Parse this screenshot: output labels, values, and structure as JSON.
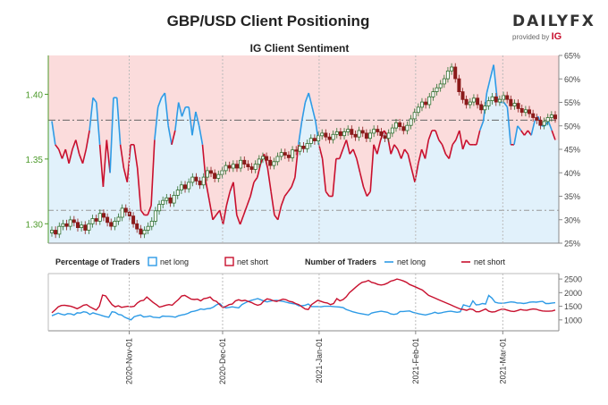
{
  "title": "GBP/USD Client Positioning",
  "brand": {
    "name": "DAILYFX",
    "provided_by": "provided by",
    "provider": "IG"
  },
  "colors": {
    "long": "#2e9be6",
    "short": "#c8102e",
    "bull_candle": "#2f6f2f",
    "bear_candle": "#8b1a1a",
    "panel_border": "#4c9a2a"
  },
  "chart_data": [
    {
      "type": "candlestick",
      "title": "IG Client Sentiment",
      "instrument": "GBP/USD",
      "y_left_ticks": [
        "1.30",
        "1.35",
        "1.40"
      ],
      "y_left_range": [
        1.285,
        1.43
      ],
      "y_right_ticks": [
        "25%",
        "30%",
        "35%",
        "40%",
        "45%",
        "50%",
        "55%",
        "60%",
        "65%"
      ],
      "y_right_range": [
        25,
        65
      ],
      "reference_lines": {
        "price": 1.38,
        "percent": 32
      },
      "date_range": [
        "2020-10-06",
        "2021-03-19"
      ],
      "close": [
        1.295,
        1.292,
        1.298,
        1.3,
        1.298,
        1.303,
        1.301,
        1.297,
        1.299,
        1.295,
        1.3,
        1.304,
        1.302,
        1.308,
        1.305,
        1.301,
        1.298,
        1.302,
        1.305,
        1.312,
        1.309,
        1.306,
        1.3,
        1.296,
        1.292,
        1.295,
        1.298,
        1.302,
        1.31,
        1.315,
        1.318,
        1.32,
        1.316,
        1.322,
        1.326,
        1.33,
        1.327,
        1.332,
        1.336,
        1.333,
        1.33,
        1.336,
        1.341,
        1.339,
        1.335,
        1.338,
        1.341,
        1.345,
        1.343,
        1.346,
        1.343,
        1.349,
        1.346,
        1.344,
        1.342,
        1.346,
        1.35,
        1.352,
        1.349,
        1.345,
        1.348,
        1.352,
        1.355,
        1.353,
        1.351,
        1.357,
        1.356,
        1.36,
        1.358,
        1.362,
        1.366,
        1.364,
        1.368,
        1.37,
        1.367,
        1.365,
        1.369,
        1.371,
        1.368,
        1.371,
        1.373,
        1.369,
        1.367,
        1.372,
        1.37,
        1.366,
        1.37,
        1.373,
        1.371,
        1.368,
        1.366,
        1.37,
        1.374,
        1.378,
        1.375,
        1.372,
        1.376,
        1.381,
        1.386,
        1.39,
        1.394,
        1.392,
        1.398,
        1.402,
        1.405,
        1.408,
        1.412,
        1.418,
        1.421,
        1.412,
        1.402,
        1.396,
        1.392,
        1.394,
        1.397,
        1.392,
        1.388,
        1.391,
        1.395,
        1.398,
        1.394,
        1.396,
        1.399,
        1.396,
        1.391,
        1.393,
        1.389,
        1.386,
        1.388,
        1.385,
        1.382,
        1.38,
        1.376,
        1.379,
        1.382,
        1.384,
        1.381
      ],
      "sentiment_pct_long": [
        51,
        46,
        45,
        43,
        45,
        42,
        45,
        47,
        44,
        42,
        45,
        49,
        56,
        55,
        46,
        37,
        47,
        40,
        56,
        56,
        46,
        41,
        38,
        46,
        46,
        41,
        32,
        31,
        31,
        33,
        47,
        54,
        56,
        57,
        50,
        46,
        49,
        55,
        52,
        54,
        54,
        48,
        53,
        50,
        46,
        38,
        34,
        30,
        31,
        32,
        29,
        33,
        36,
        38,
        31,
        29,
        31,
        33,
        35,
        38,
        39,
        42,
        44,
        41,
        36,
        31,
        30,
        33,
        35,
        36,
        37,
        39,
        46,
        51,
        55,
        57,
        54,
        51,
        46,
        43,
        36,
        35,
        35,
        43,
        43,
        45,
        47,
        44,
        45,
        43,
        40,
        37,
        35,
        36,
        46,
        44,
        47,
        49,
        48,
        44,
        46,
        45,
        43,
        45,
        44,
        41,
        38,
        42,
        45,
        43,
        47,
        49,
        49,
        47,
        46,
        44,
        43,
        46,
        47,
        49,
        45,
        47,
        46,
        46,
        46,
        49,
        51,
        57,
        60,
        63,
        56,
        55,
        55,
        54,
        46,
        46,
        50,
        49,
        48,
        49,
        48,
        51,
        52,
        50,
        50,
        51,
        49,
        47
      ]
    },
    {
      "type": "line",
      "title": "",
      "legend_sections": [
        "Percentage of Traders",
        "Number of Traders"
      ],
      "legend_entries": [
        "net long",
        "net short",
        "net long",
        "net short"
      ],
      "y_ticks": [
        "1000",
        "1500",
        "2000",
        "2500"
      ],
      "ylim": [
        600,
        2700
      ],
      "x_ticks": [
        "2020-Nov-01",
        "2020-Dec-01",
        "2021-Jan-01",
        "2021-Feb-01",
        "2021-Mar-01"
      ],
      "series": [
        {
          "name": "net long",
          "values": [
            1150,
            1200,
            1250,
            1210,
            1180,
            1230,
            1220,
            1180,
            1260,
            1250,
            1300,
            1280,
            1200,
            1260,
            1220,
            1190,
            1150,
            1120,
            1100,
            1300,
            1280,
            1200,
            1180,
            1100,
            1050,
            1000,
            1120,
            1150,
            1180,
            1110,
            1120,
            1140,
            1100,
            1090,
            1080,
            1140,
            1130,
            1130,
            1120,
            1100,
            1150,
            1180,
            1200,
            1240,
            1300,
            1320,
            1350,
            1400,
            1380,
            1410,
            1420,
            1470,
            1550,
            1600,
            1490,
            1440,
            1460,
            1480,
            1460,
            1440,
            1560,
            1620,
            1680,
            1720,
            1750,
            1780,
            1740,
            1690,
            1660,
            1690,
            1710,
            1720,
            1700,
            1680,
            1650,
            1620,
            1600,
            1580,
            1520,
            1520,
            1540,
            1580,
            1490,
            1490,
            1490,
            1480,
            1500,
            1500,
            1500,
            1490,
            1480,
            1470,
            1450,
            1380,
            1340,
            1300,
            1270,
            1240,
            1220,
            1200,
            1180,
            1250,
            1280,
            1300,
            1320,
            1300,
            1280,
            1220,
            1200,
            1220,
            1310,
            1310,
            1320,
            1330,
            1280,
            1250,
            1220,
            1200,
            1180,
            1210,
            1240,
            1280,
            1240,
            1260,
            1290,
            1310,
            1320,
            1300,
            1280,
            1300,
            1550,
            1520,
            1480,
            1700,
            1550,
            1560,
            1600,
            1580,
            1900,
            1800,
            1650,
            1620,
            1610,
            1620,
            1640,
            1660,
            1650,
            1620,
            1620,
            1600,
            1620,
            1650,
            1660,
            1650,
            1670,
            1680,
            1600,
            1600,
            1620,
            1630
          ]
        },
        {
          "name": "net short",
          "values": [
            1260,
            1360,
            1480,
            1530,
            1540,
            1520,
            1500,
            1460,
            1410,
            1470,
            1540,
            1560,
            1480,
            1420,
            1360,
            1500,
            1910,
            1880,
            1720,
            1560,
            1480,
            1520,
            1460,
            1480,
            1500,
            1480,
            1500,
            1620,
            1700,
            1720,
            1840,
            1740,
            1640,
            1560,
            1470,
            1500,
            1540,
            1560,
            1540,
            1650,
            1750,
            1880,
            1900,
            1830,
            1760,
            1750,
            1760,
            1700,
            1780,
            1800,
            1840,
            1720,
            1680,
            1560,
            1450,
            1500,
            1560,
            1580,
            1700,
            1740,
            1700,
            1720,
            1680,
            1640,
            1580,
            1540,
            1570,
            1700,
            1770,
            1750,
            1700,
            1680,
            1720,
            1760,
            1740,
            1680,
            1660,
            1600,
            1560,
            1480,
            1400,
            1380,
            1560,
            1640,
            1720,
            1680,
            1640,
            1620,
            1560,
            1600,
            1780,
            1700,
            1750,
            1850,
            2000,
            2100,
            2200,
            2300,
            2380,
            2400,
            2450,
            2380,
            2350,
            2300,
            2280,
            2300,
            2350,
            2420,
            2450,
            2500,
            2470,
            2430,
            2380,
            2300,
            2250,
            2200,
            2150,
            2100,
            2000,
            1900,
            1850,
            1800,
            1750,
            1700,
            1650,
            1600,
            1550,
            1500,
            1450,
            1400,
            1380,
            1350,
            1400,
            1380,
            1300,
            1300,
            1350,
            1400,
            1320,
            1290,
            1300,
            1350,
            1390,
            1390,
            1350,
            1320,
            1310,
            1340,
            1380,
            1360,
            1350,
            1380,
            1400,
            1390,
            1350,
            1330,
            1320,
            1320,
            1330,
            1360
          ]
        }
      ]
    }
  ]
}
